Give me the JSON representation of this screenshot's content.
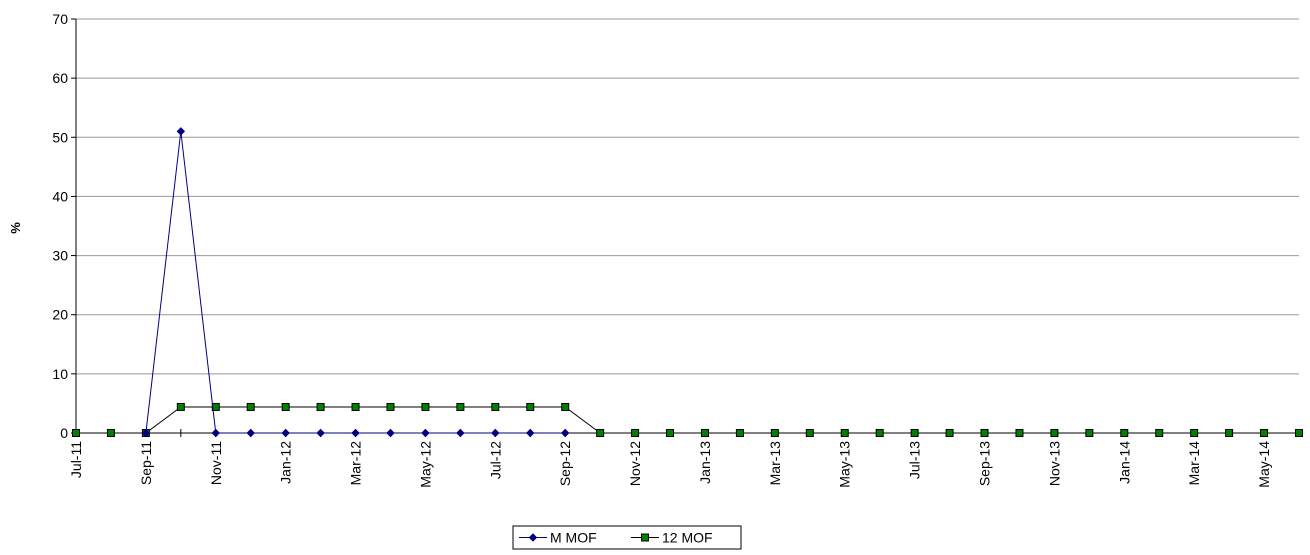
{
  "chart_data": {
    "type": "line",
    "title": "",
    "xlabel": "",
    "ylabel": "%",
    "ylim": [
      0,
      70
    ],
    "yticks": [
      0,
      10,
      20,
      30,
      40,
      50,
      60,
      70
    ],
    "grid": true,
    "legend_position": "bottom",
    "x": [
      "Jul-11",
      "Aug-11",
      "Sep-11",
      "Oct-11",
      "Nov-11",
      "Dec-11",
      "Jan-12",
      "Feb-12",
      "Mar-12",
      "Apr-12",
      "May-12",
      "Jun-12",
      "Jul-12",
      "Aug-12",
      "Sep-12",
      "Oct-12",
      "Nov-12",
      "Dec-12",
      "Jan-13",
      "Feb-13",
      "Mar-13",
      "Apr-13",
      "May-13",
      "Jun-13",
      "Jul-13",
      "Aug-13",
      "Sep-13",
      "Oct-13",
      "Nov-13",
      "Dec-13",
      "Jan-14",
      "Feb-14",
      "Mar-14",
      "Apr-14",
      "May-14",
      "Jun-14"
    ],
    "x_tick_labels": [
      "Jul-11",
      "",
      "Sep-11",
      "",
      "Nov-11",
      "",
      "Jan-12",
      "",
      "Mar-12",
      "",
      "May-12",
      "",
      "Jul-12",
      "",
      "Sep-12",
      "",
      "Nov-12",
      "",
      "Jan-13",
      "",
      "Mar-13",
      "",
      "May-13",
      "",
      "Jul-13",
      "",
      "Sep-13",
      "",
      "Nov-13",
      "",
      "Jan-14",
      "",
      "Mar-14",
      "",
      "May-14",
      ""
    ],
    "series": [
      {
        "name": "M MOF",
        "color": "#000080",
        "marker": "diamond",
        "values": [
          null,
          null,
          0,
          51,
          0,
          0,
          0,
          0,
          0,
          0,
          0,
          0,
          0,
          0,
          0,
          null,
          null,
          null,
          null,
          null,
          null,
          null,
          null,
          null,
          null,
          null,
          null,
          null,
          null,
          null,
          null,
          null,
          null,
          null,
          null,
          null
        ]
      },
      {
        "name": "12 MOF",
        "color": "#008000",
        "marker": "square",
        "values": [
          0,
          0,
          0,
          4.4,
          4.4,
          4.4,
          4.4,
          4.4,
          4.4,
          4.4,
          4.4,
          4.4,
          4.4,
          4.4,
          4.4,
          0,
          0,
          0,
          0,
          0,
          0,
          0,
          0,
          0,
          0,
          0,
          0,
          0,
          0,
          0,
          0,
          0,
          0,
          0,
          0,
          0
        ]
      }
    ]
  }
}
